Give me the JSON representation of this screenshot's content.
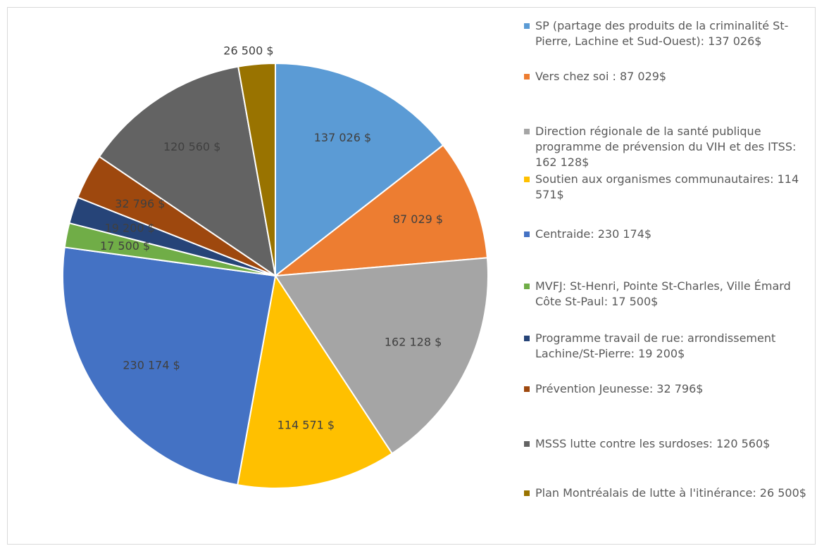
{
  "chart_data": {
    "type": "pie",
    "categories": [
      "SP (partage des produits de la criminalité St-Pierre, Lachine et Sud-Ouest): 137 026$",
      "Vers chez soi : 87 029$",
      "Direction régionale de la santé publique programme de prévension du VIH et des ITSS: 162 128$",
      "Soutien aux organismes communautaires: 114 571$",
      "Centraide: 230 174$",
      "MVFJ: St-Henri, Pointe St-Charles, Ville Émard Côte St-Paul: 17 500$",
      "Programme travail de rue: arrondissement Lachine/St-Pierre: 19 200$",
      "Prévention Jeunesse: 32 796$",
      "MSSS lutte contre les surdoses: 120 560$",
      "Plan Montréalais de lutte à l'itinérance: 26 500$"
    ],
    "values": [
      137026,
      87029,
      162128,
      114571,
      230174,
      17500,
      19200,
      32796,
      120560,
      26500
    ],
    "value_labels": [
      "137 026 $",
      "87 029 $",
      "162 128 $",
      "114 571 $",
      "230 174 $",
      "17 500 $",
      "19 200 $",
      "32 796 $",
      "120 560 $",
      "26 500 $"
    ],
    "colors": [
      "#5b9bd5",
      "#ed7d31",
      "#a5a5a5",
      "#ffc000",
      "#4472c4",
      "#70ad47",
      "#264478",
      "#9e480e",
      "#636363",
      "#997300"
    ]
  }
}
